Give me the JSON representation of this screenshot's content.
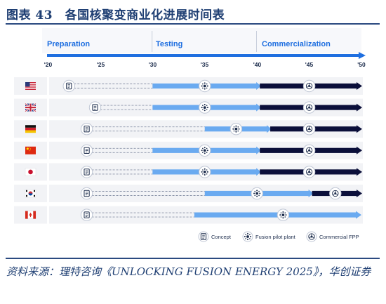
{
  "figure": {
    "title": "图表 43　各国核聚变商业化进展时间表",
    "source": "资料来源：理特咨询《UNLOCKING FUSION ENERGY 2025》，华创证券"
  },
  "chart_data": {
    "type": "timeline",
    "phases": [
      {
        "label": "Preparation",
        "start": 2020,
        "end": 2030
      },
      {
        "label": "Testing",
        "start": 2030,
        "end": 2040
      },
      {
        "label": "Commercialization",
        "start": 2040,
        "end": 2050
      }
    ],
    "ticks": [
      "'20",
      "'25",
      "'30",
      "'35",
      "'40",
      "'45",
      "'50"
    ],
    "tick_values": [
      2020,
      2025,
      2030,
      2035,
      2040,
      2045,
      2050
    ],
    "xlim": [
      2020,
      2050
    ],
    "countries": [
      {
        "name": "United States",
        "flag": "us-flag",
        "concept": 2022,
        "pilot": 2035,
        "fpp": 2045,
        "testing_start": 2030,
        "commercial_start": 2040
      },
      {
        "name": "United Kingdom",
        "flag": "uk-flag",
        "concept": 2024.5,
        "pilot": 2035,
        "fpp": 2045,
        "testing_start": 2030,
        "commercial_start": 2040
      },
      {
        "name": "Germany",
        "flag": "germany-flag",
        "concept": 2023.7,
        "pilot": 2038,
        "fpp": 2045,
        "testing_start": 2035,
        "commercial_start": 2041
      },
      {
        "name": "China",
        "flag": "china-flag",
        "concept": 2023.7,
        "pilot": 2035,
        "fpp": 2045,
        "testing_start": 2030,
        "commercial_start": 2040
      },
      {
        "name": "Japan",
        "flag": "japan-flag",
        "concept": 2023.7,
        "pilot": 2035,
        "fpp": 2045,
        "testing_start": 2030,
        "commercial_start": 2040
      },
      {
        "name": "South Korea",
        "flag": "south-korea-flag",
        "concept": 2023.7,
        "pilot": 2040,
        "fpp": 2047.5,
        "testing_start": 2035,
        "commercial_start": 2045
      },
      {
        "name": "Canada",
        "flag": "canada-flag",
        "concept": 2023.7,
        "pilot": 2042.5,
        "fpp": null,
        "testing_start": 2034,
        "commercial_start": null
      }
    ],
    "legend": [
      {
        "label": "Concept",
        "icon": "concept-icon"
      },
      {
        "label": "Fusion pilot plant",
        "icon": "pilot-plant-icon"
      },
      {
        "label": "Commercial FPP",
        "icon": "commercial-fpp-icon"
      }
    ],
    "colors": {
      "accent": "#1f6fe0",
      "testing_bar": "#6aaaf0",
      "commercial_bar": "#0b0f3a",
      "dashed": "#8a93a8",
      "row_bg": "#f2f3f6",
      "title": "#1f3f73"
    }
  }
}
